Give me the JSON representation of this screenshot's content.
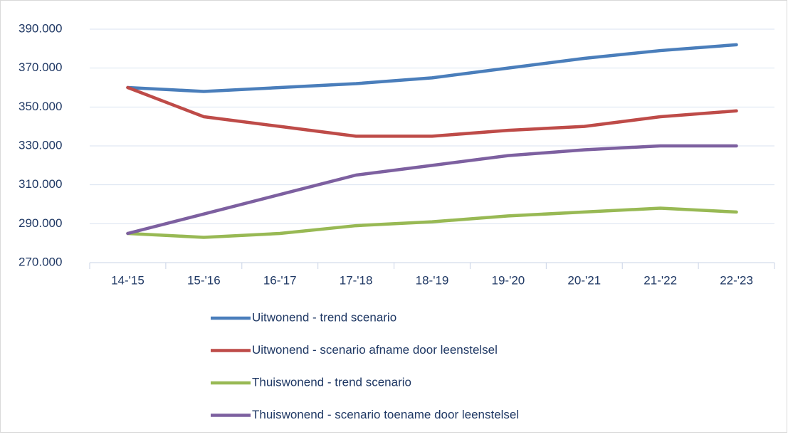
{
  "chart_data": {
    "type": "line",
    "categories": [
      "14-'15",
      "15-'16",
      "16-'17",
      "17-'18",
      "18-'19",
      "19-'20",
      "20-'21",
      "21-'22",
      "22-'23"
    ],
    "series": [
      {
        "name": "Uitwonend - trend scenario",
        "color": "#4a7ebb",
        "values": [
          360000,
          358000,
          360000,
          362000,
          365000,
          370000,
          375000,
          379000,
          382000
        ]
      },
      {
        "name": "Uitwonend - scenario afname door leenstelsel",
        "color": "#be4b48",
        "values": [
          360000,
          345000,
          340000,
          335000,
          335000,
          338000,
          340000,
          345000,
          348000
        ]
      },
      {
        "name": "Thuiswonend - trend scenario",
        "color": "#98b954",
        "values": [
          285000,
          283000,
          285000,
          289000,
          291000,
          294000,
          296000,
          298000,
          296000
        ]
      },
      {
        "name": "Thuiswonend - scenario toename door leenstelsel",
        "color": "#7d60a0",
        "values": [
          285000,
          295000,
          305000,
          315000,
          320000,
          325000,
          328000,
          330000,
          330000
        ]
      }
    ],
    "ylim": [
      270000,
      390000
    ],
    "yticks": [
      {
        "value": 270000,
        "label": "270.000"
      },
      {
        "value": 290000,
        "label": "290.000"
      },
      {
        "value": 310000,
        "label": "310.000"
      },
      {
        "value": 330000,
        "label": "330.000"
      },
      {
        "value": 350000,
        "label": "350.000"
      },
      {
        "value": 370000,
        "label": "370.000"
      },
      {
        "value": 390000,
        "label": "390.000"
      }
    ],
    "grid": true,
    "legend": "bottom"
  }
}
